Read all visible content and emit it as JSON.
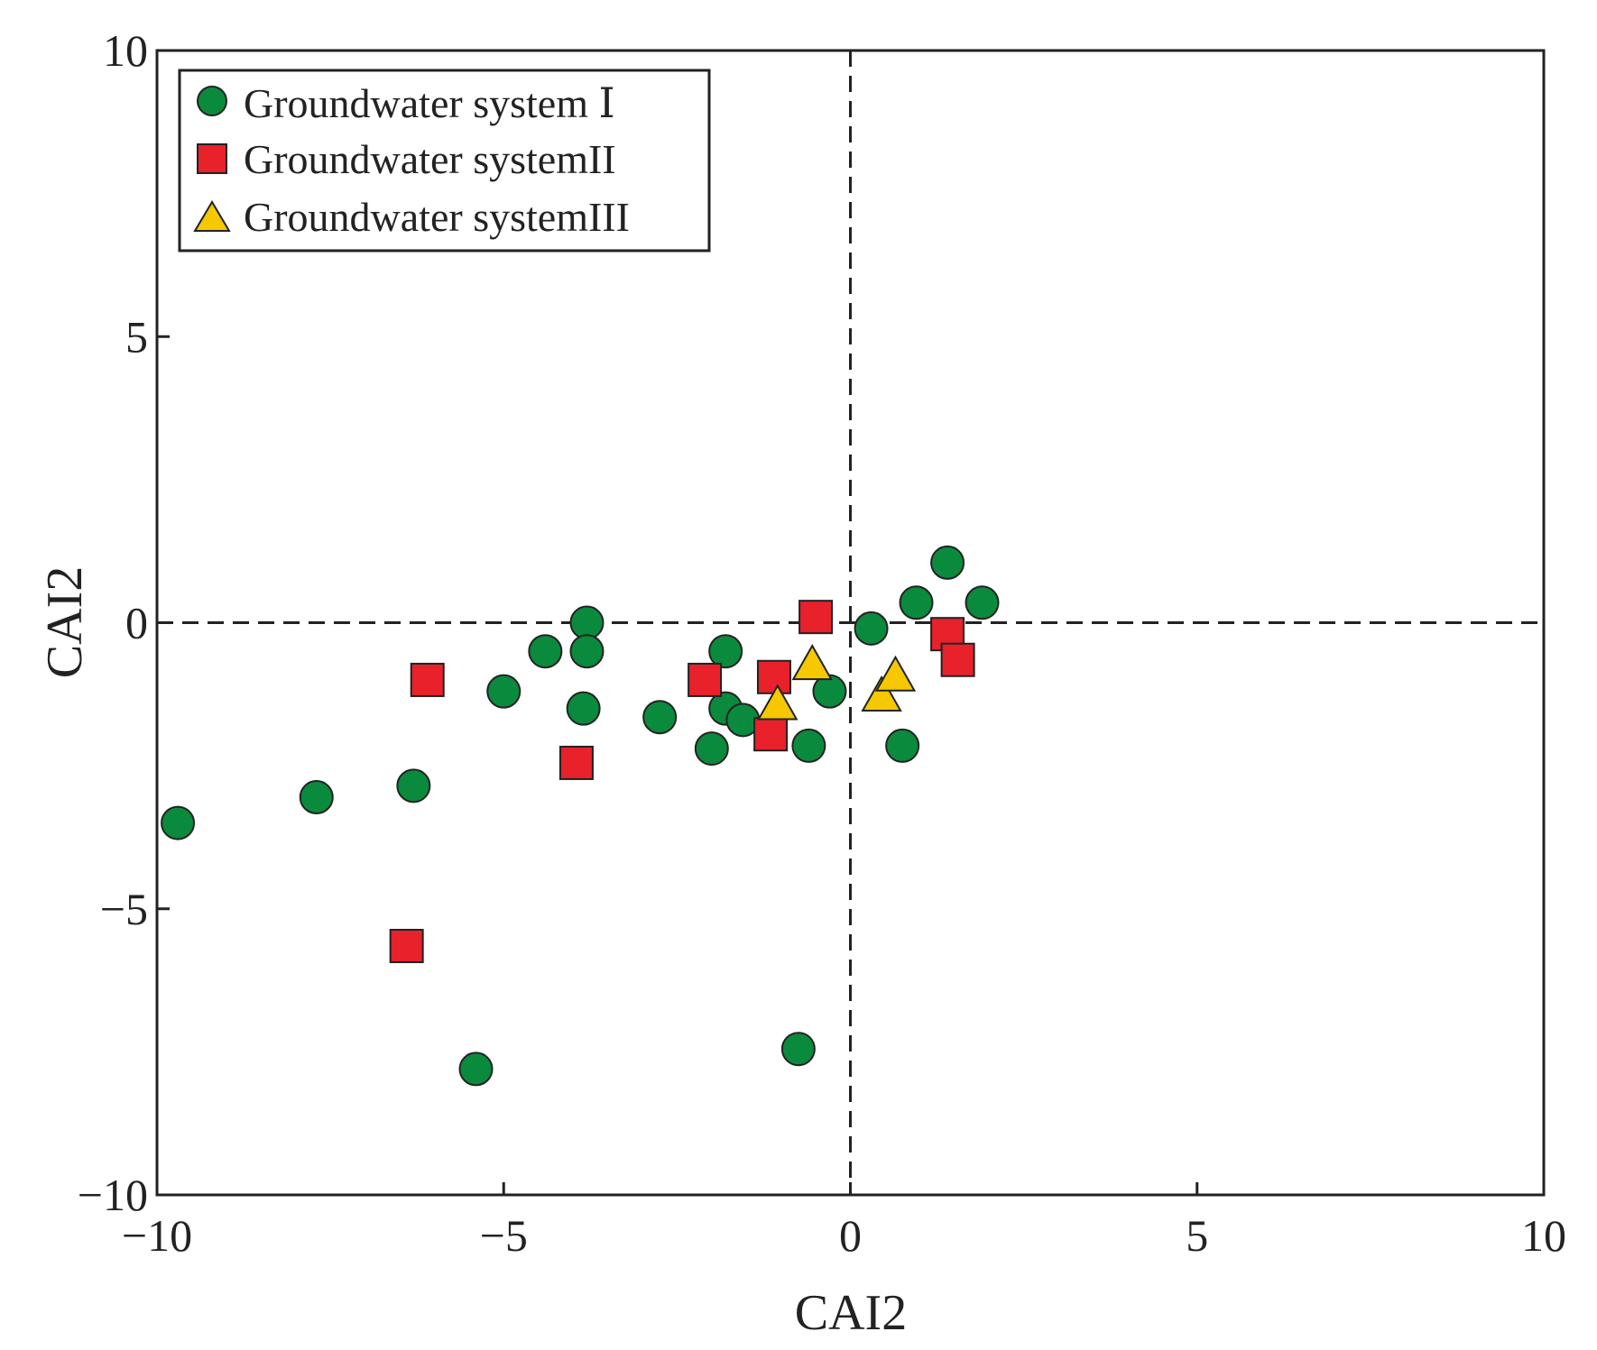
{
  "chart_data": {
    "type": "scatter",
    "title": "",
    "xlabel": "CAI2",
    "ylabel": "CAI2",
    "xlim": [
      -10,
      10
    ],
    "ylim": [
      -10,
      10
    ],
    "xticks": [
      -10,
      -5,
      0,
      5,
      10
    ],
    "yticks": [
      -10,
      -5,
      0,
      5,
      10
    ],
    "xtick_labels": [
      "−10",
      "−5",
      "0",
      "5",
      "10"
    ],
    "ytick_labels": [
      "−10",
      "−5",
      "0",
      "5",
      "10"
    ],
    "grid": false,
    "reference_lines": {
      "x": 0,
      "y": 0,
      "style": "dashed"
    },
    "legend_position": "top-left",
    "series": [
      {
        "name": "Groundwater system Ⅰ",
        "marker": "circle",
        "color": "#0a8a3c",
        "points": [
          [
            -9.7,
            -3.5
          ],
          [
            -7.7,
            -3.05
          ],
          [
            -6.3,
            -2.85
          ],
          [
            -5.4,
            -7.8
          ],
          [
            -5.0,
            -1.2
          ],
          [
            -4.4,
            -0.5
          ],
          [
            -3.8,
            0.0
          ],
          [
            -3.8,
            -0.5
          ],
          [
            -3.85,
            -1.5
          ],
          [
            -2.75,
            -1.65
          ],
          [
            -1.8,
            -0.5
          ],
          [
            -1.8,
            -1.5
          ],
          [
            -1.55,
            -1.7
          ],
          [
            -2.0,
            -2.2
          ],
          [
            -0.6,
            -2.15
          ],
          [
            -0.3,
            -1.2
          ],
          [
            0.3,
            -0.1
          ],
          [
            0.95,
            0.35
          ],
          [
            1.4,
            1.05
          ],
          [
            1.9,
            0.35
          ],
          [
            0.75,
            -2.15
          ],
          [
            -0.75,
            -7.45
          ]
        ]
      },
      {
        "name": "Groundwater systemII",
        "marker": "square",
        "color": "#e8212b",
        "points": [
          [
            -6.1,
            -1.0
          ],
          [
            -6.4,
            -5.65
          ],
          [
            -3.95,
            -2.45
          ],
          [
            -2.1,
            -1.0
          ],
          [
            -1.1,
            -0.95
          ],
          [
            -1.15,
            -1.95
          ],
          [
            -0.5,
            0.1
          ],
          [
            1.4,
            -0.2
          ],
          [
            1.55,
            -0.65
          ]
        ]
      },
      {
        "name": "Groundwater systemIII",
        "marker": "triangle",
        "color": "#f5c800",
        "points": [
          [
            -1.05,
            -1.45
          ],
          [
            -0.55,
            -0.75
          ],
          [
            0.45,
            -1.3
          ],
          [
            0.65,
            -0.95
          ]
        ]
      }
    ]
  }
}
